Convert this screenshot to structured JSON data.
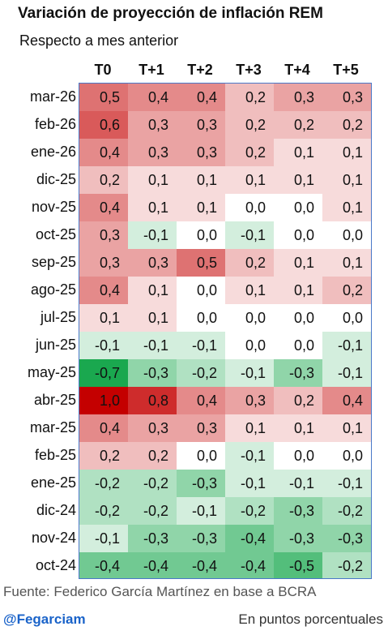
{
  "chart_data": {
    "type": "heatmap",
    "title": "Variación de proyección de inflación REM",
    "subtitle": "Respecto a mes anterior",
    "columns": [
      "T0",
      "T+1",
      "T+2",
      "T+3",
      "T+4",
      "T+5"
    ],
    "rows": [
      "mar-26",
      "feb-26",
      "ene-26",
      "dic-25",
      "nov-25",
      "oct-25",
      "sep-25",
      "ago-25",
      "jul-25",
      "jun-25",
      "may-25",
      "abr-25",
      "mar-25",
      "feb-25",
      "ene-25",
      "dic-24",
      "nov-24",
      "oct-24"
    ],
    "values": [
      [
        0.5,
        0.4,
        0.4,
        0.2,
        0.3,
        0.3
      ],
      [
        0.6,
        0.3,
        0.3,
        0.2,
        0.2,
        0.2
      ],
      [
        0.4,
        0.3,
        0.3,
        0.2,
        0.1,
        0.1
      ],
      [
        0.2,
        0.1,
        0.1,
        0.1,
        0.1,
        0.1
      ],
      [
        0.4,
        0.1,
        0.1,
        0.0,
        0.0,
        0.1
      ],
      [
        0.3,
        -0.1,
        0.0,
        -0.1,
        0.0,
        0.0
      ],
      [
        0.3,
        0.3,
        0.5,
        0.2,
        0.1,
        0.1
      ],
      [
        0.4,
        0.1,
        0.0,
        0.1,
        0.1,
        0.2
      ],
      [
        0.1,
        0.1,
        0.0,
        0.0,
        0.0,
        0.0
      ],
      [
        -0.1,
        -0.1,
        -0.1,
        0.0,
        0.0,
        -0.1
      ],
      [
        -0.7,
        -0.3,
        -0.2,
        -0.1,
        -0.3,
        -0.1
      ],
      [
        1.0,
        0.8,
        0.4,
        0.3,
        0.2,
        0.4
      ],
      [
        0.4,
        0.3,
        0.3,
        0.1,
        0.1,
        0.1
      ],
      [
        0.2,
        0.2,
        0.0,
        -0.1,
        0.0,
        0.0
      ],
      [
        -0.2,
        -0.2,
        -0.3,
        -0.1,
        -0.1,
        -0.1
      ],
      [
        -0.2,
        -0.2,
        -0.1,
        -0.2,
        -0.3,
        -0.2
      ],
      [
        -0.1,
        -0.3,
        -0.3,
        -0.4,
        -0.3,
        -0.3
      ],
      [
        -0.4,
        -0.4,
        -0.4,
        -0.4,
        -0.5,
        -0.2
      ]
    ],
    "color_scale": {
      "negative": "#1aa84f",
      "zero": "#ffffff",
      "positive": "#c40000"
    },
    "grid_border_color": "#4a78c8"
  },
  "footer": {
    "source": "Fuente: Federico García Martínez en base a BCRA",
    "handle": "@Fegarciam",
    "units": "En puntos porcentuales"
  }
}
